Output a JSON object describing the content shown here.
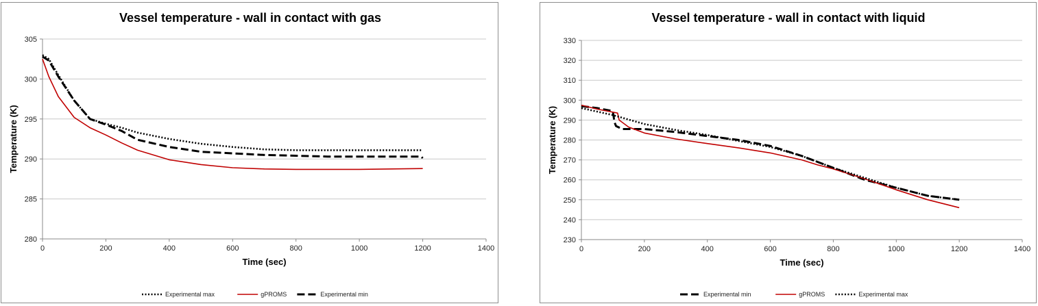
{
  "chart_data": [
    {
      "type": "line",
      "title": "Vessel temperature - wall in contact with gas",
      "xlabel": "Time (sec)",
      "ylabel": "Temperature (K)",
      "xlim": [
        0,
        1400
      ],
      "ylim": [
        280,
        305
      ],
      "x_ticks": [
        0,
        200,
        400,
        600,
        800,
        1000,
        1200,
        1400
      ],
      "y_ticks": [
        280,
        285,
        290,
        295,
        300,
        305
      ],
      "grid": true,
      "legend_position": "bottom",
      "series": [
        {
          "name": "Experimental max",
          "style": "dotted",
          "color": "#000000",
          "x": [
            0,
            20,
            50,
            100,
            150,
            200,
            250,
            300,
            400,
            500,
            600,
            700,
            800,
            900,
            1000,
            1100,
            1200
          ],
          "y": [
            303,
            302.5,
            300.5,
            297.3,
            295,
            294.4,
            293.9,
            293.3,
            292.5,
            291.9,
            291.5,
            291.2,
            291.1,
            291.1,
            291.1,
            291.1,
            291.1
          ]
        },
        {
          "name": "gPROMS",
          "style": "solid",
          "color": "#c00000",
          "x": [
            0,
            20,
            50,
            100,
            150,
            200,
            250,
            300,
            400,
            500,
            600,
            700,
            800,
            900,
            1000,
            1100,
            1200
          ],
          "y": [
            302.5,
            300.3,
            297.8,
            295.2,
            293.9,
            293,
            292,
            291.1,
            289.9,
            289.3,
            288.9,
            288.75,
            288.7,
            288.7,
            288.7,
            288.75,
            288.8
          ]
        },
        {
          "name": "Experimental min",
          "style": "dashed",
          "color": "#000000",
          "x": [
            0,
            20,
            50,
            100,
            150,
            200,
            250,
            300,
            400,
            500,
            600,
            700,
            800,
            900,
            1000,
            1100,
            1195,
            1200
          ],
          "y": [
            302.8,
            302.3,
            300.3,
            297.3,
            295,
            294.3,
            293.5,
            292.4,
            291.5,
            290.9,
            290.7,
            290.5,
            290.4,
            290.3,
            290.3,
            290.3,
            290.3,
            290.1
          ]
        }
      ]
    },
    {
      "type": "line",
      "title": "Vessel temperature - wall in contact with liquid",
      "xlabel": "Time (sec)",
      "ylabel": "Temperature (K)",
      "xlim": [
        0,
        1400
      ],
      "ylim": [
        230,
        330
      ],
      "x_ticks": [
        0,
        200,
        400,
        600,
        800,
        1000,
        1200,
        1400
      ],
      "y_ticks": [
        230,
        240,
        250,
        260,
        270,
        280,
        290,
        300,
        310,
        320,
        330
      ],
      "grid": true,
      "legend_position": "bottom",
      "series": [
        {
          "name": "Experimental min",
          "style": "dashed",
          "color": "#000000",
          "x": [
            0,
            50,
            100,
            105,
            110,
            130,
            200,
            300,
            400,
            500,
            600,
            700,
            800,
            900,
            1000,
            1100,
            1200
          ],
          "y": [
            297,
            296,
            294.5,
            289,
            287,
            285.5,
            285.5,
            284,
            282,
            280,
            277,
            272,
            266,
            260,
            256,
            252,
            250
          ]
        },
        {
          "name": "gPROMS",
          "style": "solid",
          "color": "#c00000",
          "x": [
            0,
            50,
            100,
            115,
            120,
            150,
            200,
            300,
            400,
            500,
            600,
            700,
            750,
            800,
            900,
            1000,
            1100,
            1200
          ],
          "y": [
            297.5,
            295.5,
            294,
            293.5,
            290,
            286.5,
            283.5,
            280.5,
            278.2,
            276,
            273.5,
            270,
            267.5,
            265.5,
            260.5,
            255,
            250,
            246
          ]
        },
        {
          "name": "Experimental max",
          "style": "dotted",
          "color": "#000000",
          "x": [
            0,
            100,
            200,
            300,
            400,
            500,
            600,
            700,
            800,
            900,
            1000,
            1100,
            1200
          ],
          "y": [
            296,
            292.5,
            288,
            285,
            282.5,
            279.5,
            276.5,
            272,
            266,
            261,
            256,
            252,
            250
          ]
        }
      ]
    }
  ]
}
